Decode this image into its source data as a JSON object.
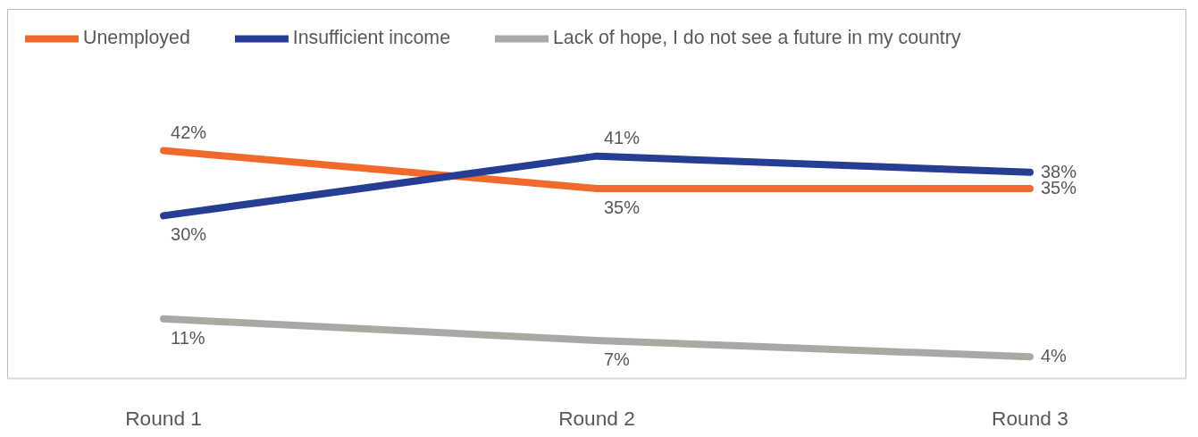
{
  "chart_data": {
    "type": "line",
    "categories": [
      "Round 1",
      "Round 2",
      "Round 3"
    ],
    "series": [
      {
        "name": "Unemployed",
        "color": "#f26a2b",
        "values": [
          42,
          35,
          35
        ],
        "value_labels": [
          "42%",
          "35%",
          "35%"
        ]
      },
      {
        "name": "Insufficient income",
        "color": "#253e94",
        "values": [
          30,
          41,
          38
        ],
        "value_labels": [
          "30%",
          "41%",
          "38%"
        ]
      },
      {
        "name": "Lack of hope, I do not see a future in my country",
        "color": "#a5aba2",
        "values": [
          11,
          7,
          4
        ],
        "value_labels": [
          "11%",
          "7%",
          "4%"
        ]
      }
    ],
    "legend": "top",
    "line_style": "solid"
  }
}
